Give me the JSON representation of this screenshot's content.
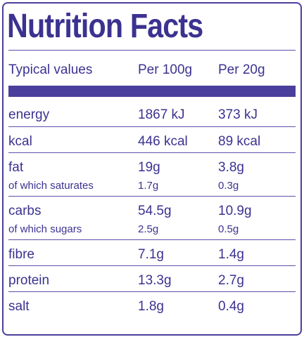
{
  "title": "Nutrition Facts",
  "table": {
    "header": [
      "Typical values",
      "Per 100g",
      "Per 20g"
    ],
    "rows": [
      {
        "cells": [
          "energy",
          "1867 kJ",
          "373 kJ"
        ]
      },
      {
        "cells": [
          "kcal",
          "446 kcal",
          "89 kcal"
        ]
      },
      {
        "cells": [
          "fat",
          "19g",
          "3.8g"
        ],
        "sub": [
          "of which saturates",
          "1.7g",
          "0.3g"
        ]
      },
      {
        "cells": [
          "carbs",
          "54.5g",
          "10.9g"
        ],
        "sub": [
          "of which sugars",
          "2.5g",
          "0.5g"
        ]
      },
      {
        "cells": [
          "fibre",
          "7.1g",
          "1.4g"
        ]
      },
      {
        "cells": [
          "protein",
          "13.3g",
          "2.7g"
        ]
      },
      {
        "cells": [
          "salt",
          "1.8g",
          "0.4g"
        ]
      }
    ]
  }
}
